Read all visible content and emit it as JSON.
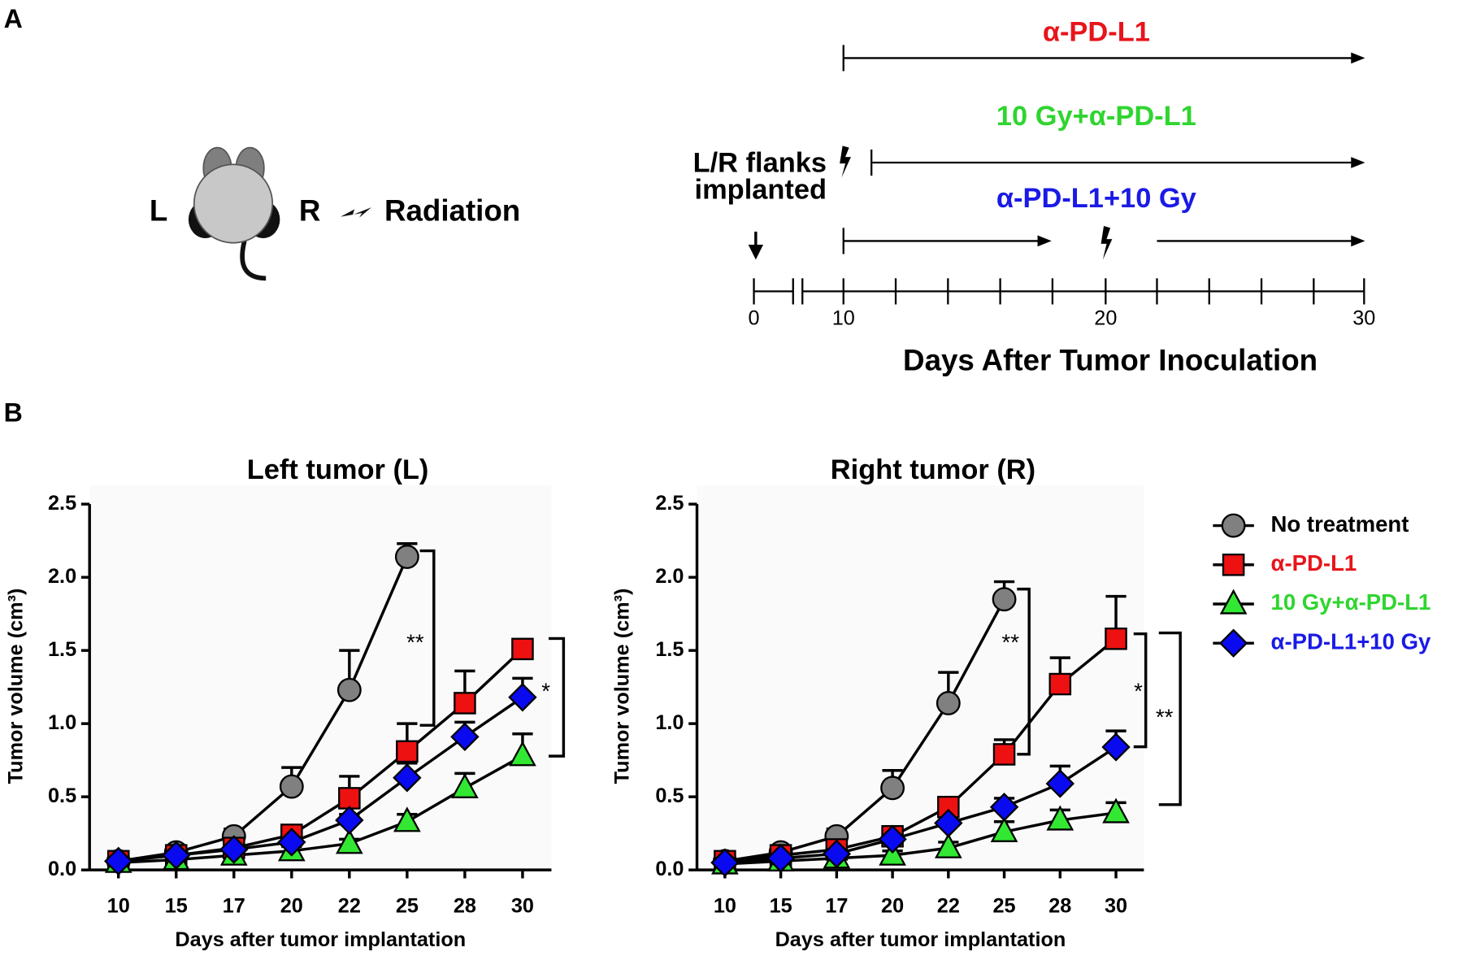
{
  "panel_a": {
    "label": "A",
    "mouse": {
      "left": "L",
      "right": "R",
      "radiation": "Radiation"
    },
    "timeline": {
      "implant_label": [
        "L/R flanks",
        "implanted"
      ],
      "ticks": [
        0,
        10,
        20,
        30
      ],
      "xlabel": "Days After Tumor Inoculation",
      "treatments": [
        {
          "name": "α-PD-L1",
          "color": "#e8141b"
        },
        {
          "name": "10 Gy+α-PD-L1",
          "color": "#2fd52f"
        },
        {
          "name": "α-PD-L1+10 Gy",
          "color": "#1a1ae6"
        }
      ]
    }
  },
  "panel_b": {
    "label": "B"
  },
  "chart_data": [
    {
      "type": "line",
      "title": "Left tumor (L)",
      "xlabel": "Days after tumor implantation",
      "ylabel": "Tumor volume (cm³)",
      "categories": [
        "10",
        "15",
        "17",
        "20",
        "22",
        "25",
        "28",
        "30"
      ],
      "ylim": [
        0,
        2.5
      ],
      "yticks": [
        {
          "value": 0,
          "label": "0.0"
        },
        {
          "value": 0.5,
          "label": "0.5"
        },
        {
          "value": 1,
          "label": "1.0"
        },
        {
          "value": 1.5,
          "label": "1.5"
        },
        {
          "value": 2,
          "label": "2.0"
        },
        {
          "value": 2.5,
          "label": "2.5"
        }
      ],
      "series": [
        {
          "color": "#808080",
          "marker": "circle",
          "values": [
            0.06,
            0.12,
            0.23,
            0.57,
            1.23,
            2.14,
            null,
            null
          ],
          "errors": [
            0.02,
            0.03,
            0.05,
            0.13,
            0.27,
            0.09,
            null,
            null
          ]
        },
        {
          "color": "#ee1111",
          "marker": "square",
          "values": [
            0.06,
            0.1,
            0.15,
            0.24,
            0.49,
            0.81,
            1.14,
            1.51
          ],
          "errors": [
            0.02,
            0.02,
            0.03,
            0.04,
            0.15,
            0.19,
            0.22,
            0.02
          ]
        },
        {
          "color": "#33e833",
          "marker": "triangle",
          "values": [
            0.05,
            0.07,
            0.1,
            0.13,
            0.18,
            0.33,
            0.56,
            0.78
          ],
          "errors": [
            0.01,
            0.01,
            0.02,
            0.03,
            0.03,
            0.05,
            0.1,
            0.15
          ]
        },
        {
          "color": "#0a0af0",
          "marker": "diamond",
          "values": [
            0.06,
            0.1,
            0.14,
            0.19,
            0.34,
            0.63,
            0.91,
            1.18
          ],
          "errors": [
            0.01,
            0.02,
            0.02,
            0.03,
            0.04,
            0.1,
            0.1,
            0.13
          ]
        }
      ],
      "annotations": [
        "**",
        "*"
      ]
    },
    {
      "type": "line",
      "title": "Right tumor (R)",
      "xlabel": "Days after tumor implantation",
      "ylabel": "Tumor volume (cm³)",
      "categories": [
        "10",
        "15",
        "17",
        "20",
        "22",
        "25",
        "28",
        "30"
      ],
      "ylim": [
        0,
        2.5
      ],
      "yticks": [
        {
          "value": 0,
          "label": "0.0"
        },
        {
          "value": 0.5,
          "label": "0.5"
        },
        {
          "value": 1,
          "label": "1.0"
        },
        {
          "value": 1.5,
          "label": "1.5"
        },
        {
          "value": 2,
          "label": "2.0"
        },
        {
          "value": 2.5,
          "label": "2.5"
        }
      ],
      "legend": "right",
      "series": [
        {
          "name": "No treatment",
          "color": "#808080",
          "label_color": "#000000",
          "marker": "circle",
          "values": [
            0.06,
            0.12,
            0.23,
            0.56,
            1.14,
            1.85,
            null,
            null
          ],
          "errors": [
            0.02,
            0.03,
            0.05,
            0.12,
            0.21,
            0.12,
            null,
            null
          ]
        },
        {
          "name": "α-PD-L1",
          "color": "#ee1111",
          "label_color": "#e8141b",
          "marker": "square",
          "values": [
            0.06,
            0.1,
            0.14,
            0.23,
            0.43,
            0.79,
            1.27,
            1.58
          ],
          "errors": [
            0.02,
            0.02,
            0.03,
            0.04,
            0.05,
            0.1,
            0.18,
            0.29
          ]
        },
        {
          "name": "10 Gy+α-PD-L1",
          "color": "#33e833",
          "label_color": "#2fd52f",
          "marker": "triangle",
          "values": [
            0.04,
            0.06,
            0.08,
            0.1,
            0.15,
            0.26,
            0.34,
            0.39
          ],
          "errors": [
            0.01,
            0.01,
            0.02,
            0.03,
            0.04,
            0.07,
            0.07,
            0.07
          ]
        },
        {
          "name": "α-PD-L1+10 Gy",
          "color": "#0a0af0",
          "label_color": "#1a1ae6",
          "marker": "diamond",
          "values": [
            0.05,
            0.08,
            0.11,
            0.21,
            0.32,
            0.43,
            0.59,
            0.84
          ],
          "errors": [
            0.01,
            0.02,
            0.02,
            0.04,
            0.05,
            0.06,
            0.12,
            0.11
          ]
        }
      ],
      "annotations": [
        "**",
        "*",
        "**"
      ]
    }
  ]
}
